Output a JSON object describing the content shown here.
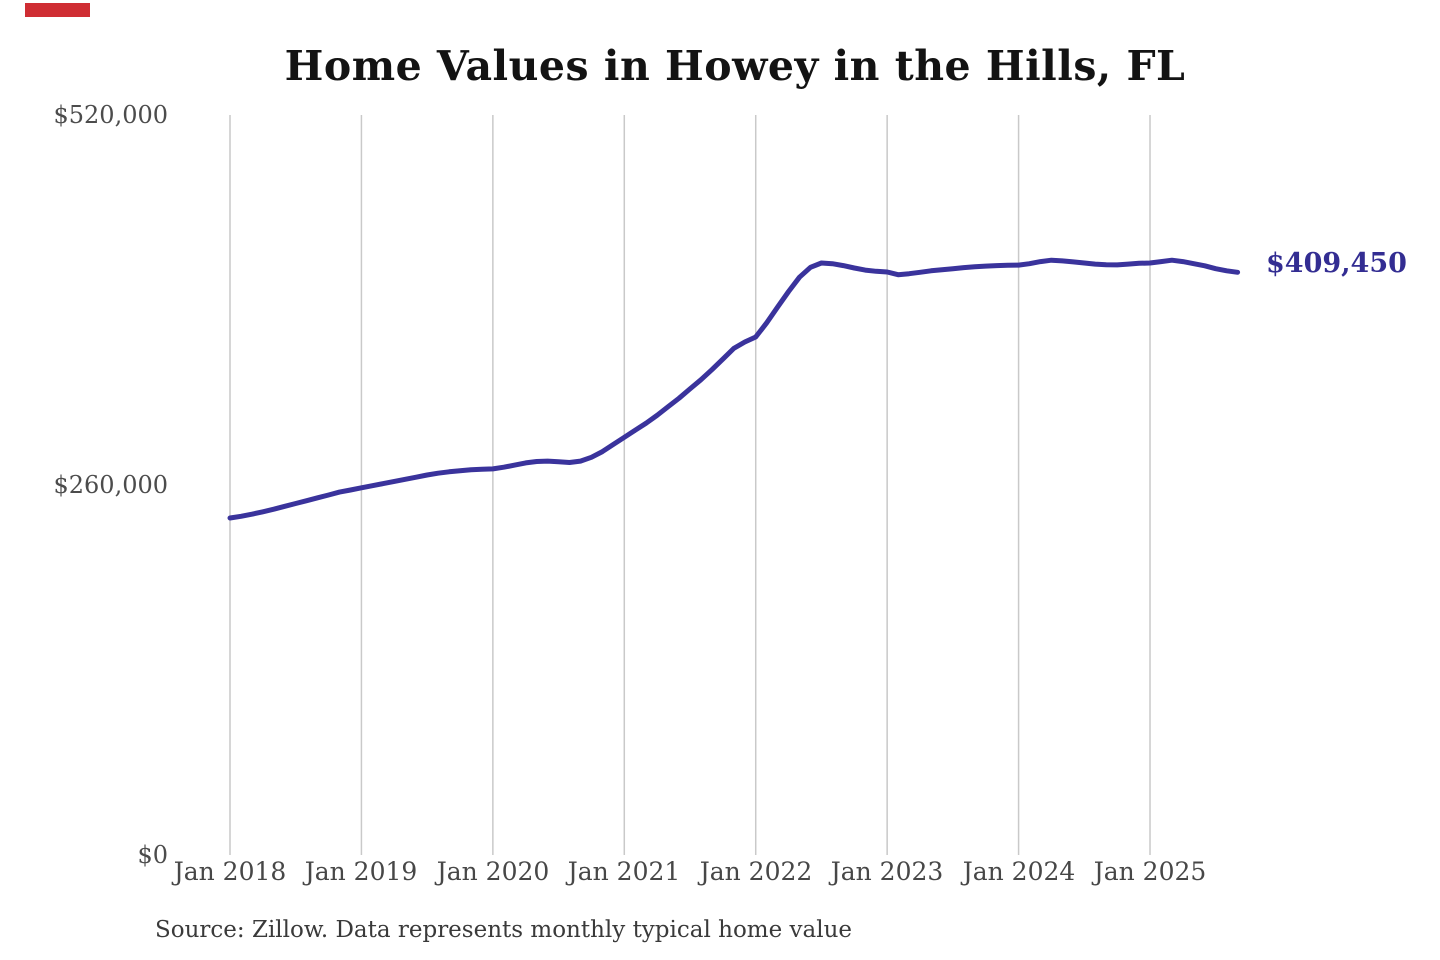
{
  "title": "Home Values in Howey in the Hills, FL",
  "end_label": "$409,450",
  "source_note": "Source: Zillow. Data represents monthly typical home value",
  "colors": {
    "line": "#3a339c",
    "end_label": "#332d92",
    "gridline": "#c9c9c9",
    "tick_text": "#4c4c4c",
    "title_text": "#131313",
    "corner_marker": "#cf2d33",
    "background": "#ffffff"
  },
  "chart_data": {
    "type": "line",
    "title": "Home Values in Howey in the Hills, FL",
    "xlabel": "",
    "ylabel": "",
    "ylim": [
      0,
      520000
    ],
    "grid": "vertical-only",
    "legend_position": "none",
    "annotation": "$409,450",
    "yticks": [
      {
        "label": "$520,000",
        "value": 520000
      },
      {
        "label": "$260,000",
        "value": 260000
      },
      {
        "label": "$0",
        "value": 0
      }
    ],
    "xticks": [
      "Jan 2018",
      "Jan 2019",
      "Jan 2020",
      "Jan 2021",
      "Jan 2022",
      "Jan 2023",
      "Jan 2024",
      "Jan 2025"
    ],
    "series_name": "Monthly typical home value (USD)",
    "x": [
      "2018-01",
      "2018-02",
      "2018-03",
      "2018-04",
      "2018-05",
      "2018-06",
      "2018-07",
      "2018-08",
      "2018-09",
      "2018-10",
      "2018-11",
      "2018-12",
      "2019-01",
      "2019-02",
      "2019-03",
      "2019-04",
      "2019-05",
      "2019-06",
      "2019-07",
      "2019-08",
      "2019-09",
      "2019-10",
      "2019-11",
      "2019-12",
      "2020-01",
      "2020-02",
      "2020-03",
      "2020-04",
      "2020-05",
      "2020-06",
      "2020-07",
      "2020-08",
      "2020-09",
      "2020-10",
      "2020-11",
      "2020-12",
      "2021-01",
      "2021-02",
      "2021-03",
      "2021-04",
      "2021-05",
      "2021-06",
      "2021-07",
      "2021-08",
      "2021-09",
      "2021-10",
      "2021-11",
      "2021-12",
      "2022-01",
      "2022-02",
      "2022-03",
      "2022-04",
      "2022-05",
      "2022-06",
      "2022-07",
      "2022-08",
      "2022-09",
      "2022-10",
      "2022-11",
      "2022-12",
      "2023-01",
      "2023-02",
      "2023-03",
      "2023-04",
      "2023-05",
      "2023-06",
      "2023-07",
      "2023-08",
      "2023-09",
      "2023-10",
      "2023-11",
      "2023-12",
      "2024-01",
      "2024-02",
      "2024-03",
      "2024-04",
      "2024-05",
      "2024-06",
      "2024-07",
      "2024-08",
      "2024-09",
      "2024-10",
      "2024-11",
      "2024-12",
      "2025-01",
      "2025-02",
      "2025-03",
      "2025-04",
      "2025-05",
      "2025-06",
      "2025-07",
      "2025-08",
      "2025-09"
    ],
    "values": [
      236800,
      238000,
      239500,
      241200,
      243000,
      245000,
      247000,
      249000,
      251000,
      253000,
      255000,
      256500,
      258000,
      259500,
      261000,
      262500,
      264000,
      265500,
      267000,
      268300,
      269300,
      270000,
      270700,
      271000,
      271300,
      272500,
      274000,
      275500,
      276500,
      276800,
      276300,
      275800,
      276800,
      279500,
      283500,
      288500,
      293500,
      298500,
      303500,
      309000,
      315000,
      321000,
      327500,
      334000,
      341000,
      348500,
      356000,
      360500,
      364000,
      374000,
      385000,
      396000,
      406000,
      413000,
      416000,
      415500,
      414200,
      412500,
      411000,
      410200,
      409700,
      407800,
      408500,
      409500,
      410500,
      411200,
      412000,
      412800,
      413300,
      413800,
      414200,
      414400,
      414500,
      415500,
      417000,
      418000,
      417500,
      416800,
      416000,
      415200,
      414800,
      414700,
      415200,
      415800,
      416000,
      417000,
      418000,
      417000,
      415500,
      414000,
      412000,
      410500,
      409450
    ]
  }
}
